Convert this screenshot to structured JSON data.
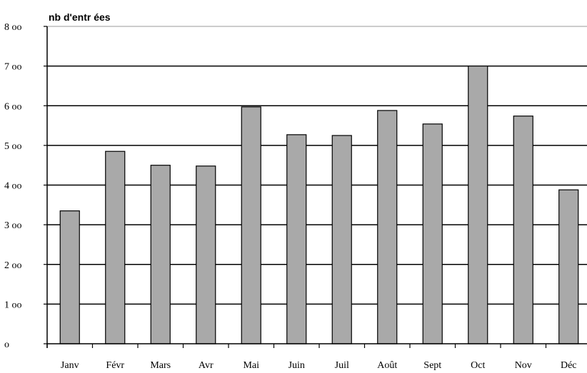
{
  "chart_data": {
    "type": "bar",
    "title": "",
    "xlabel": "",
    "ylabel": "nb d'entr ées",
    "categories": [
      "Janv",
      "Févr",
      "Mars",
      "Avr",
      "Mai",
      "Juin",
      "Juil",
      "Août",
      "Sept",
      "Oct",
      "Nov",
      "Déc"
    ],
    "values": [
      335,
      485,
      450,
      448,
      597,
      527,
      525,
      588,
      554,
      700,
      574,
      388
    ],
    "ylim": [
      0,
      800
    ],
    "yticks": [
      0,
      100,
      200,
      300,
      400,
      500,
      600,
      700,
      800
    ],
    "ytick_labels": [
      "o",
      "1 oo",
      "2 oo",
      "3 oo",
      "4 oo",
      "5 oo",
      "6 oo",
      "7 oo",
      "8 oo"
    ],
    "grid": true,
    "legend": "none",
    "colors": {
      "bar": "#a9a9a9",
      "bar_outline": "#000000",
      "grid": "#000000"
    }
  }
}
